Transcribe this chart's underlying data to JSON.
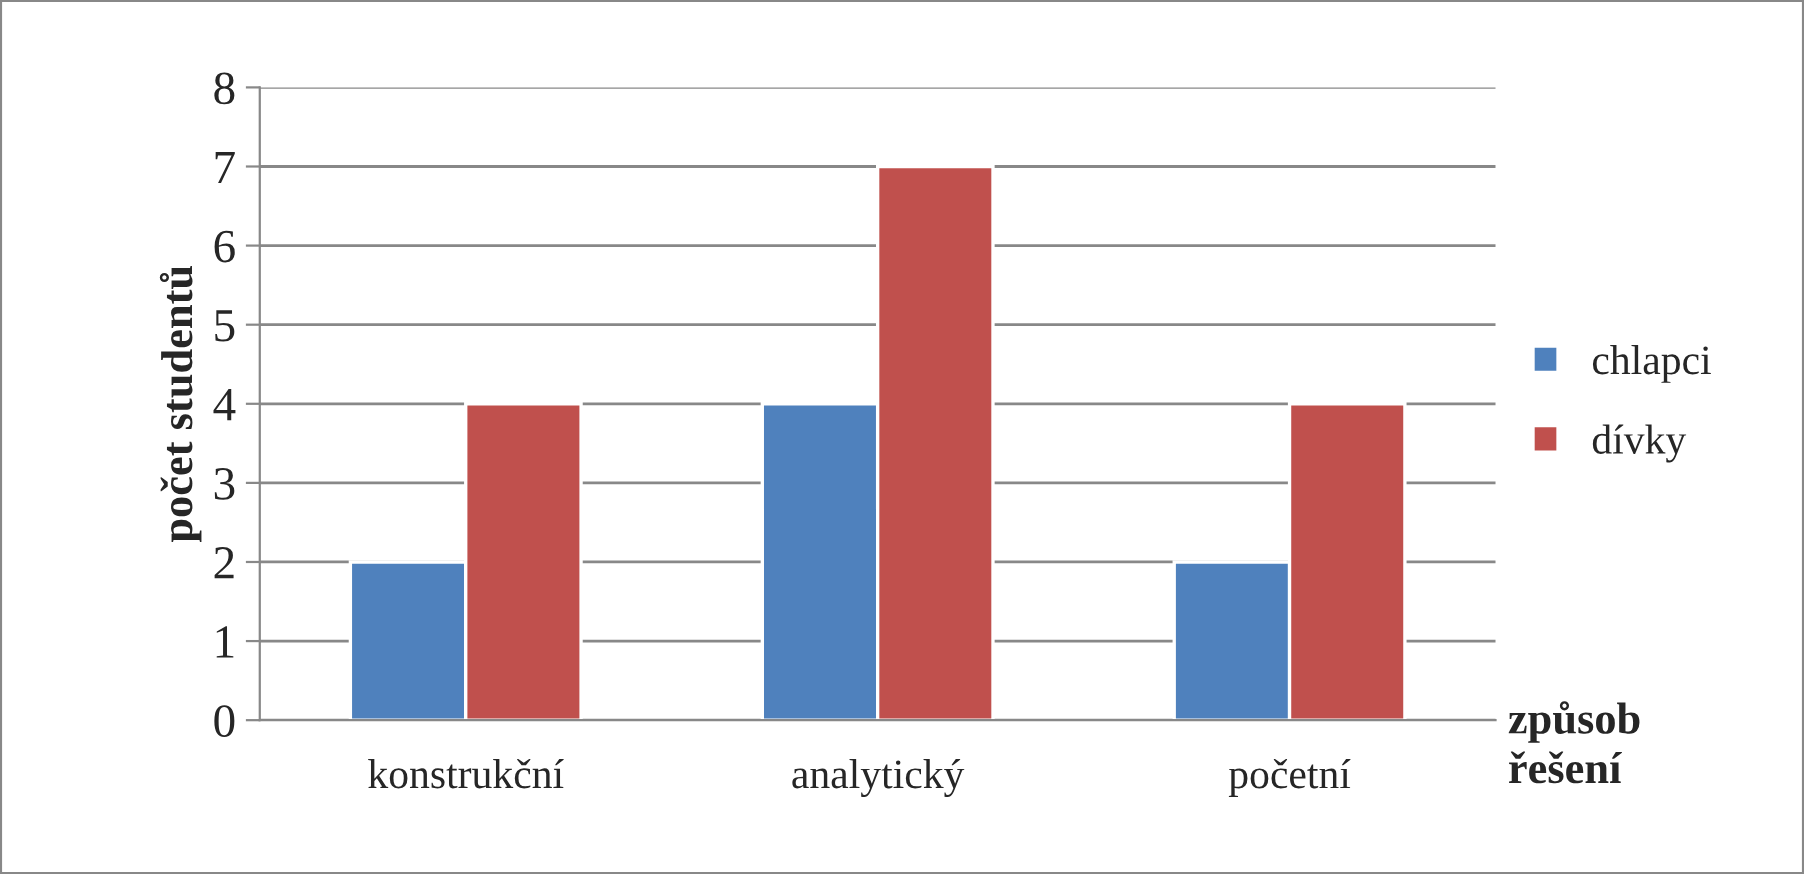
{
  "chart_data": {
    "type": "bar",
    "xlabel": "způsob řešení",
    "ylabel": "počet studentů",
    "categories": [
      "konstrukční",
      "analytický",
      "početní"
    ],
    "series": [
      {
        "name": "chlapci",
        "color": "#4f81bd",
        "values": [
          2,
          4,
          2
        ]
      },
      {
        "name": "dívky",
        "color": "#c0504d",
        "values": [
          4,
          7,
          4
        ]
      }
    ],
    "ylim": [
      0,
      8
    ],
    "yticks": [
      0,
      1,
      2,
      3,
      4,
      5,
      6,
      7,
      8
    ],
    "grid": "y",
    "legend": "right"
  }
}
